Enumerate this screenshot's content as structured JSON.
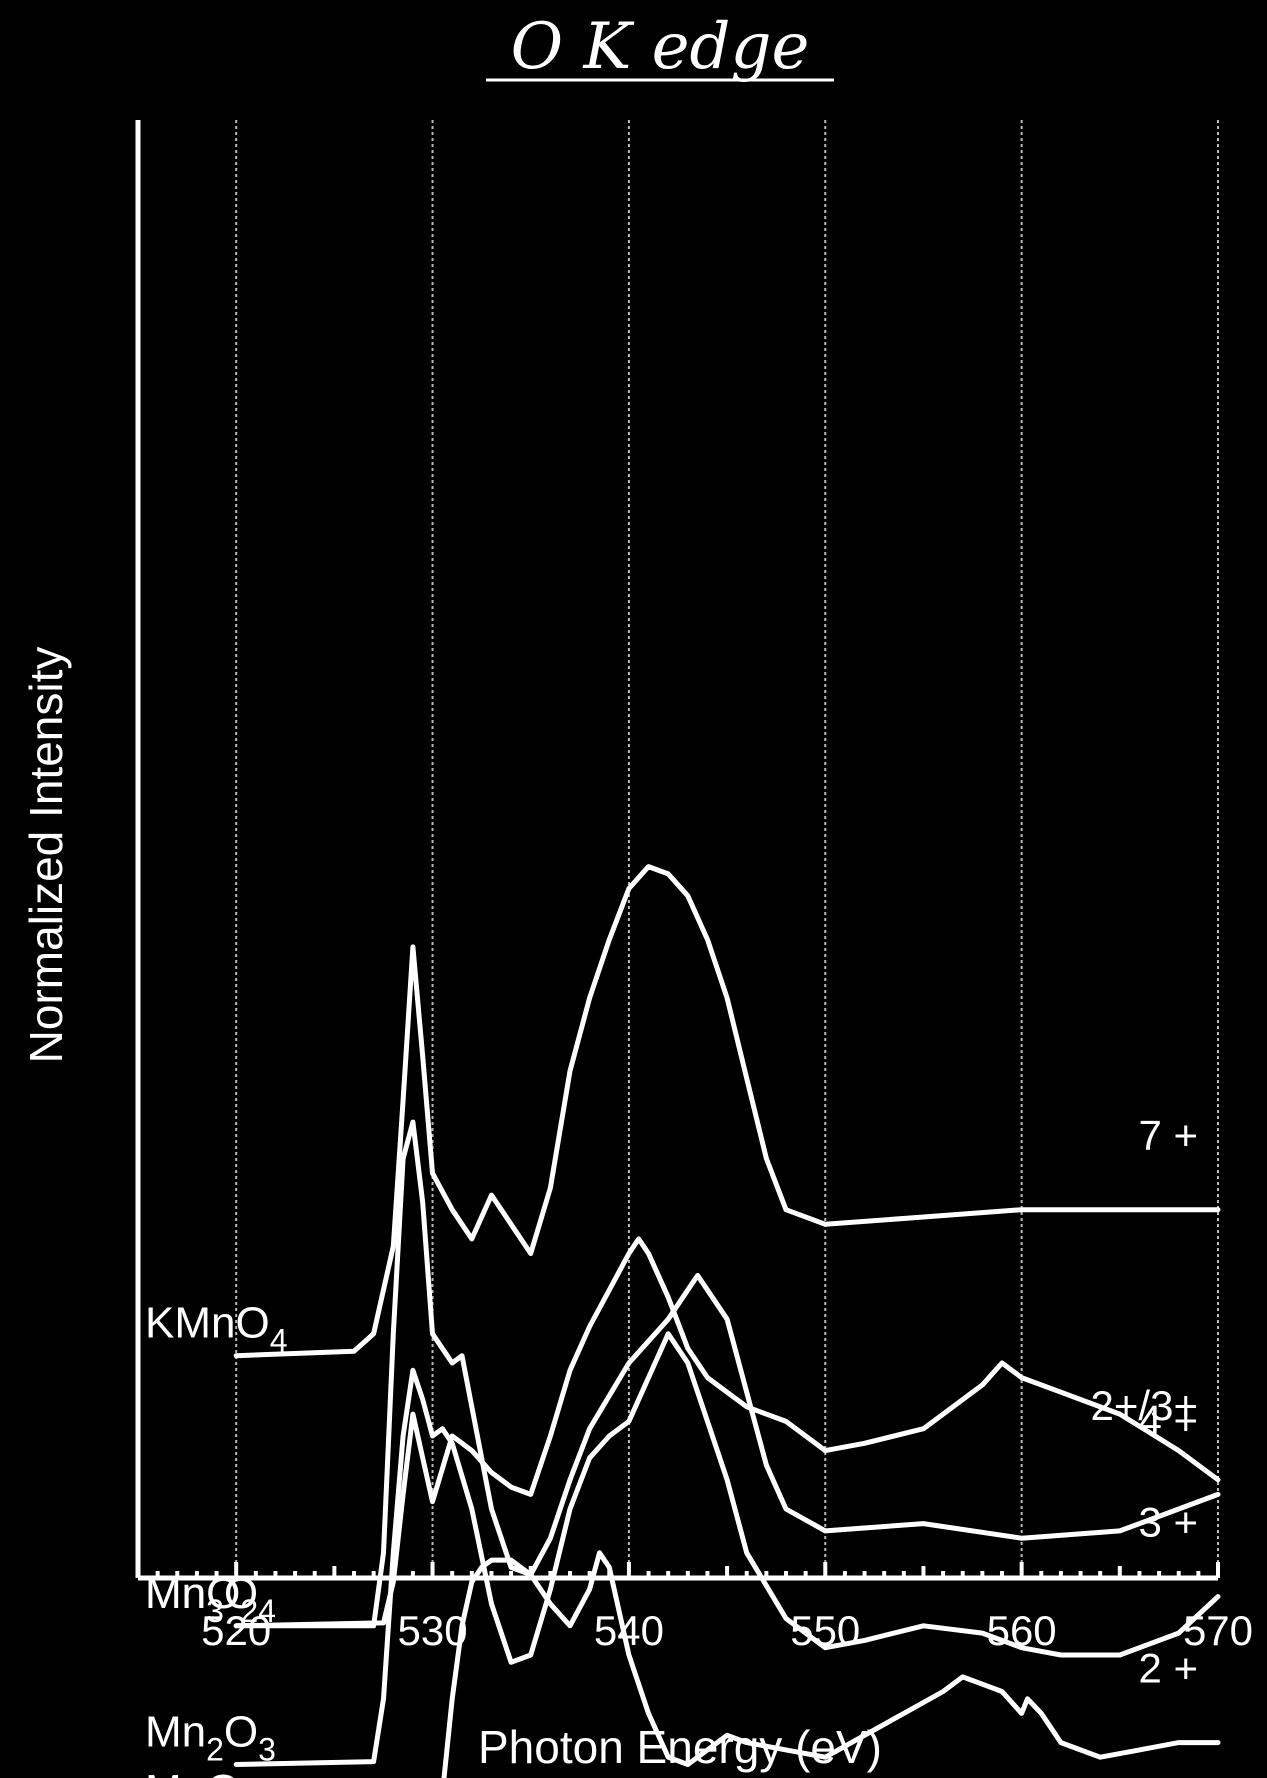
{
  "chart_data": {
    "type": "line",
    "title": "O K edge",
    "xlabel": "Photon Energy (eV)",
    "ylabel": "Normalized Intensity",
    "xlim": [
      515,
      570
    ],
    "xticks": [
      520,
      530,
      540,
      550,
      560,
      570
    ],
    "grid": true,
    "series": [
      {
        "name": "KMnO4",
        "label_main": "KMnO",
        "label_sub": "4",
        "oxidation_state": "7 +",
        "x": [
          520,
          526,
          527,
          528,
          528.5,
          529,
          529.5,
          530,
          531,
          532,
          533,
          534,
          535,
          536,
          537,
          538,
          539,
          540,
          541,
          542,
          543,
          544,
          545,
          546,
          547,
          548,
          550,
          555,
          560,
          565,
          570
        ],
        "y": [
          4.55,
          4.58,
          4.7,
          5.3,
          6.3,
          7.35,
          6.6,
          5.8,
          5.55,
          5.35,
          5.65,
          5.45,
          5.25,
          5.7,
          6.5,
          7.0,
          7.4,
          7.75,
          7.9,
          7.85,
          7.7,
          7.4,
          7.0,
          6.45,
          5.9,
          5.55,
          5.45,
          5.5,
          5.55,
          5.55,
          5.55
        ]
      },
      {
        "name": "MnO2",
        "label_main": "MnO",
        "label_sub": "2",
        "oxidation_state": "4 +",
        "x": [
          520,
          527,
          527.5,
          528,
          528.5,
          529,
          529.5,
          530,
          531,
          531.5,
          532,
          533,
          534,
          535,
          536,
          537,
          538,
          540,
          542,
          543.5,
          545,
          546,
          547,
          548,
          550,
          555,
          560,
          565,
          570
        ],
        "y": [
          2.7,
          2.7,
          3.2,
          4.7,
          5.9,
          6.15,
          5.6,
          4.7,
          4.5,
          4.55,
          4.2,
          3.5,
          3.1,
          3.05,
          3.3,
          3.7,
          4.05,
          4.5,
          4.8,
          5.1,
          4.8,
          4.3,
          3.8,
          3.5,
          3.35,
          3.4,
          3.3,
          3.35,
          3.6
        ]
      },
      {
        "name": "Mn3O4",
        "label_main": "Mn",
        "label_sub": "3",
        "label_main2": "O",
        "label_sub2": "4",
        "oxidation_state": "2+/3+",
        "x": [
          520,
          527.5,
          528,
          528.5,
          529,
          529.5,
          530,
          531,
          531.5,
          532,
          533,
          534,
          535,
          536,
          537,
          538,
          539,
          540,
          540.5,
          541,
          542,
          543,
          544,
          545,
          546,
          548,
          550,
          552,
          555,
          558,
          559,
          560,
          562,
          565,
          568,
          570
        ],
        "y": [
          2.7,
          2.72,
          3.0,
          3.6,
          4.15,
          3.85,
          3.55,
          4.0,
          3.95,
          3.9,
          3.75,
          3.65,
          3.6,
          4.0,
          4.45,
          4.75,
          5.0,
          5.25,
          5.35,
          5.25,
          4.95,
          4.6,
          4.4,
          4.3,
          4.2,
          4.1,
          3.9,
          3.95,
          4.05,
          4.35,
          4.5,
          4.4,
          4.3,
          4.15,
          3.9,
          3.7
        ]
      },
      {
        "name": "Mn2O3",
        "label_main": "Mn",
        "label_sub": "2",
        "label_main2": "O",
        "label_sub2": "3",
        "oxidation_state": "3 +",
        "x": [
          520,
          527,
          527.5,
          528,
          528.5,
          529,
          529.5,
          530,
          530.5,
          531,
          532,
          533,
          534,
          535,
          536,
          537,
          538,
          539,
          540,
          541,
          542,
          543,
          544,
          545,
          546,
          548,
          550,
          552,
          555,
          558,
          560,
          562,
          565,
          568,
          570
        ],
        "y": [
          1.75,
          1.77,
          2.2,
          3.2,
          4.0,
          4.45,
          4.25,
          4.0,
          4.05,
          3.95,
          3.5,
          2.85,
          2.45,
          2.5,
          2.95,
          3.5,
          3.85,
          4.0,
          4.1,
          4.4,
          4.7,
          4.5,
          4.1,
          3.7,
          3.2,
          2.75,
          2.55,
          2.6,
          2.7,
          2.65,
          2.55,
          2.5,
          2.5,
          2.65,
          2.9
        ]
      },
      {
        "name": "MnO",
        "label_main": "MnO",
        "label_sub": "",
        "oxidation_state": "2 +",
        "x": [
          520,
          522,
          524,
          526,
          528,
          528.3,
          528.6,
          529,
          530,
          530.5,
          531,
          531.5,
          532,
          532.5,
          533,
          534,
          535,
          536,
          537,
          538,
          538.5,
          539,
          540,
          541,
          542,
          543,
          544,
          545,
          546,
          548,
          550,
          552,
          554,
          556,
          557,
          558,
          559,
          560,
          560.3,
          561,
          562,
          563,
          564,
          566,
          568,
          570
        ],
        "y": [
          1.35,
          1.36,
          1.35,
          1.34,
          1.33,
          1.4,
          1.35,
          1.36,
          1.4,
          1.55,
          2.2,
          2.7,
          3.0,
          3.1,
          3.15,
          3.15,
          3.05,
          2.85,
          2.7,
          2.95,
          3.2,
          3.1,
          2.5,
          2.1,
          1.8,
          1.75,
          1.85,
          1.95,
          1.9,
          1.85,
          1.8,
          1.95,
          2.1,
          2.25,
          2.35,
          2.3,
          2.25,
          2.1,
          2.2,
          2.1,
          1.9,
          1.85,
          1.8,
          1.85,
          1.9,
          1.9
        ]
      }
    ]
  }
}
